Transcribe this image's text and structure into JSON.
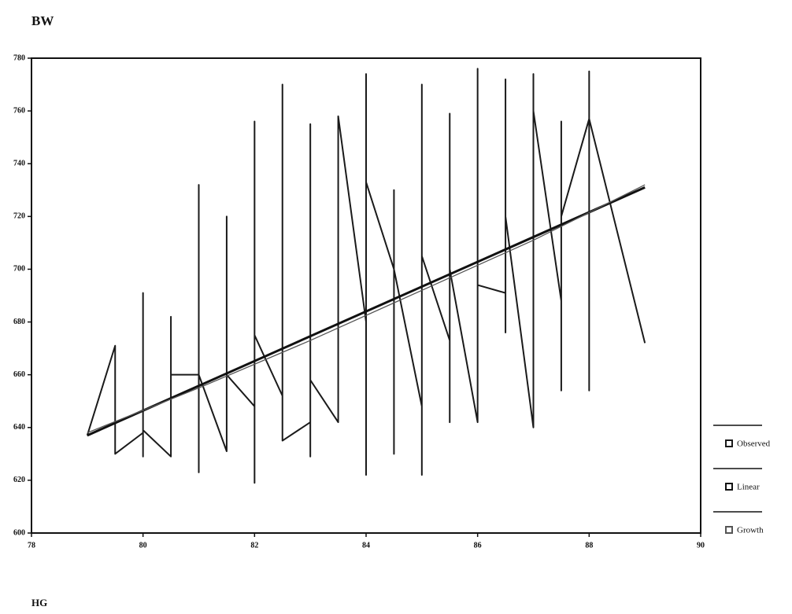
{
  "chart_data": {
    "type": "line",
    "y_label": "BW",
    "x_label": "HG",
    "xlim": [
      78,
      90
    ],
    "xticks": [
      78,
      80,
      82,
      84,
      86,
      88,
      90
    ],
    "ylim": [
      600,
      780
    ],
    "yticks": [
      600,
      620,
      640,
      660,
      680,
      700,
      720,
      740,
      760,
      780
    ],
    "legend": "right",
    "series": [
      {
        "name": "Observed",
        "color": "#1a1a1a",
        "width": 2,
        "x": [
          79,
          79.5,
          79.5,
          80,
          80,
          80,
          80,
          80.5,
          80.5,
          80.5,
          81,
          81,
          81,
          81,
          81.5,
          81.5,
          81.5,
          82,
          82,
          82,
          82,
          82.5,
          82.5,
          82.5,
          82.5,
          83,
          83,
          83,
          83,
          83.5,
          83.5,
          84,
          84,
          84,
          84,
          84.5,
          84.5,
          84.5,
          84.5,
          85,
          85,
          85,
          85,
          85.5,
          85.5,
          85.5,
          85.5,
          86,
          86,
          86,
          86.5,
          86.5,
          86.5,
          86.5,
          87,
          87,
          87,
          87.5,
          87.5,
          87.5,
          87.5,
          88,
          88,
          88,
          88,
          89
        ],
        "values": [
          637,
          671,
          630,
          638,
          629,
          691,
          639,
          629,
          682,
          660,
          660,
          623,
          732,
          660,
          631,
          720,
          660,
          648,
          619,
          756,
          675,
          652,
          635,
          770,
          635,
          642,
          629,
          755,
          658,
          642,
          758,
          680,
          622,
          774,
          733,
          700,
          630,
          730,
          700,
          648,
          622,
          770,
          705,
          673,
          642,
          759,
          700,
          642,
          776,
          694,
          691,
          676,
          772,
          720,
          640,
          774,
          760,
          688,
          654,
          756,
          720,
          757,
          654,
          775,
          757,
          672
        ]
      },
      {
        "name": "Linear",
        "color": "#111111",
        "width": 3,
        "x": [
          79,
          89
        ],
        "values": [
          637,
          731
        ]
      },
      {
        "name": "Growth",
        "color": "#555555",
        "width": 1.3,
        "x": [
          79,
          81,
          83,
          85,
          87,
          89
        ],
        "values": [
          638,
          655,
          673,
          692,
          711,
          732
        ]
      }
    ]
  }
}
